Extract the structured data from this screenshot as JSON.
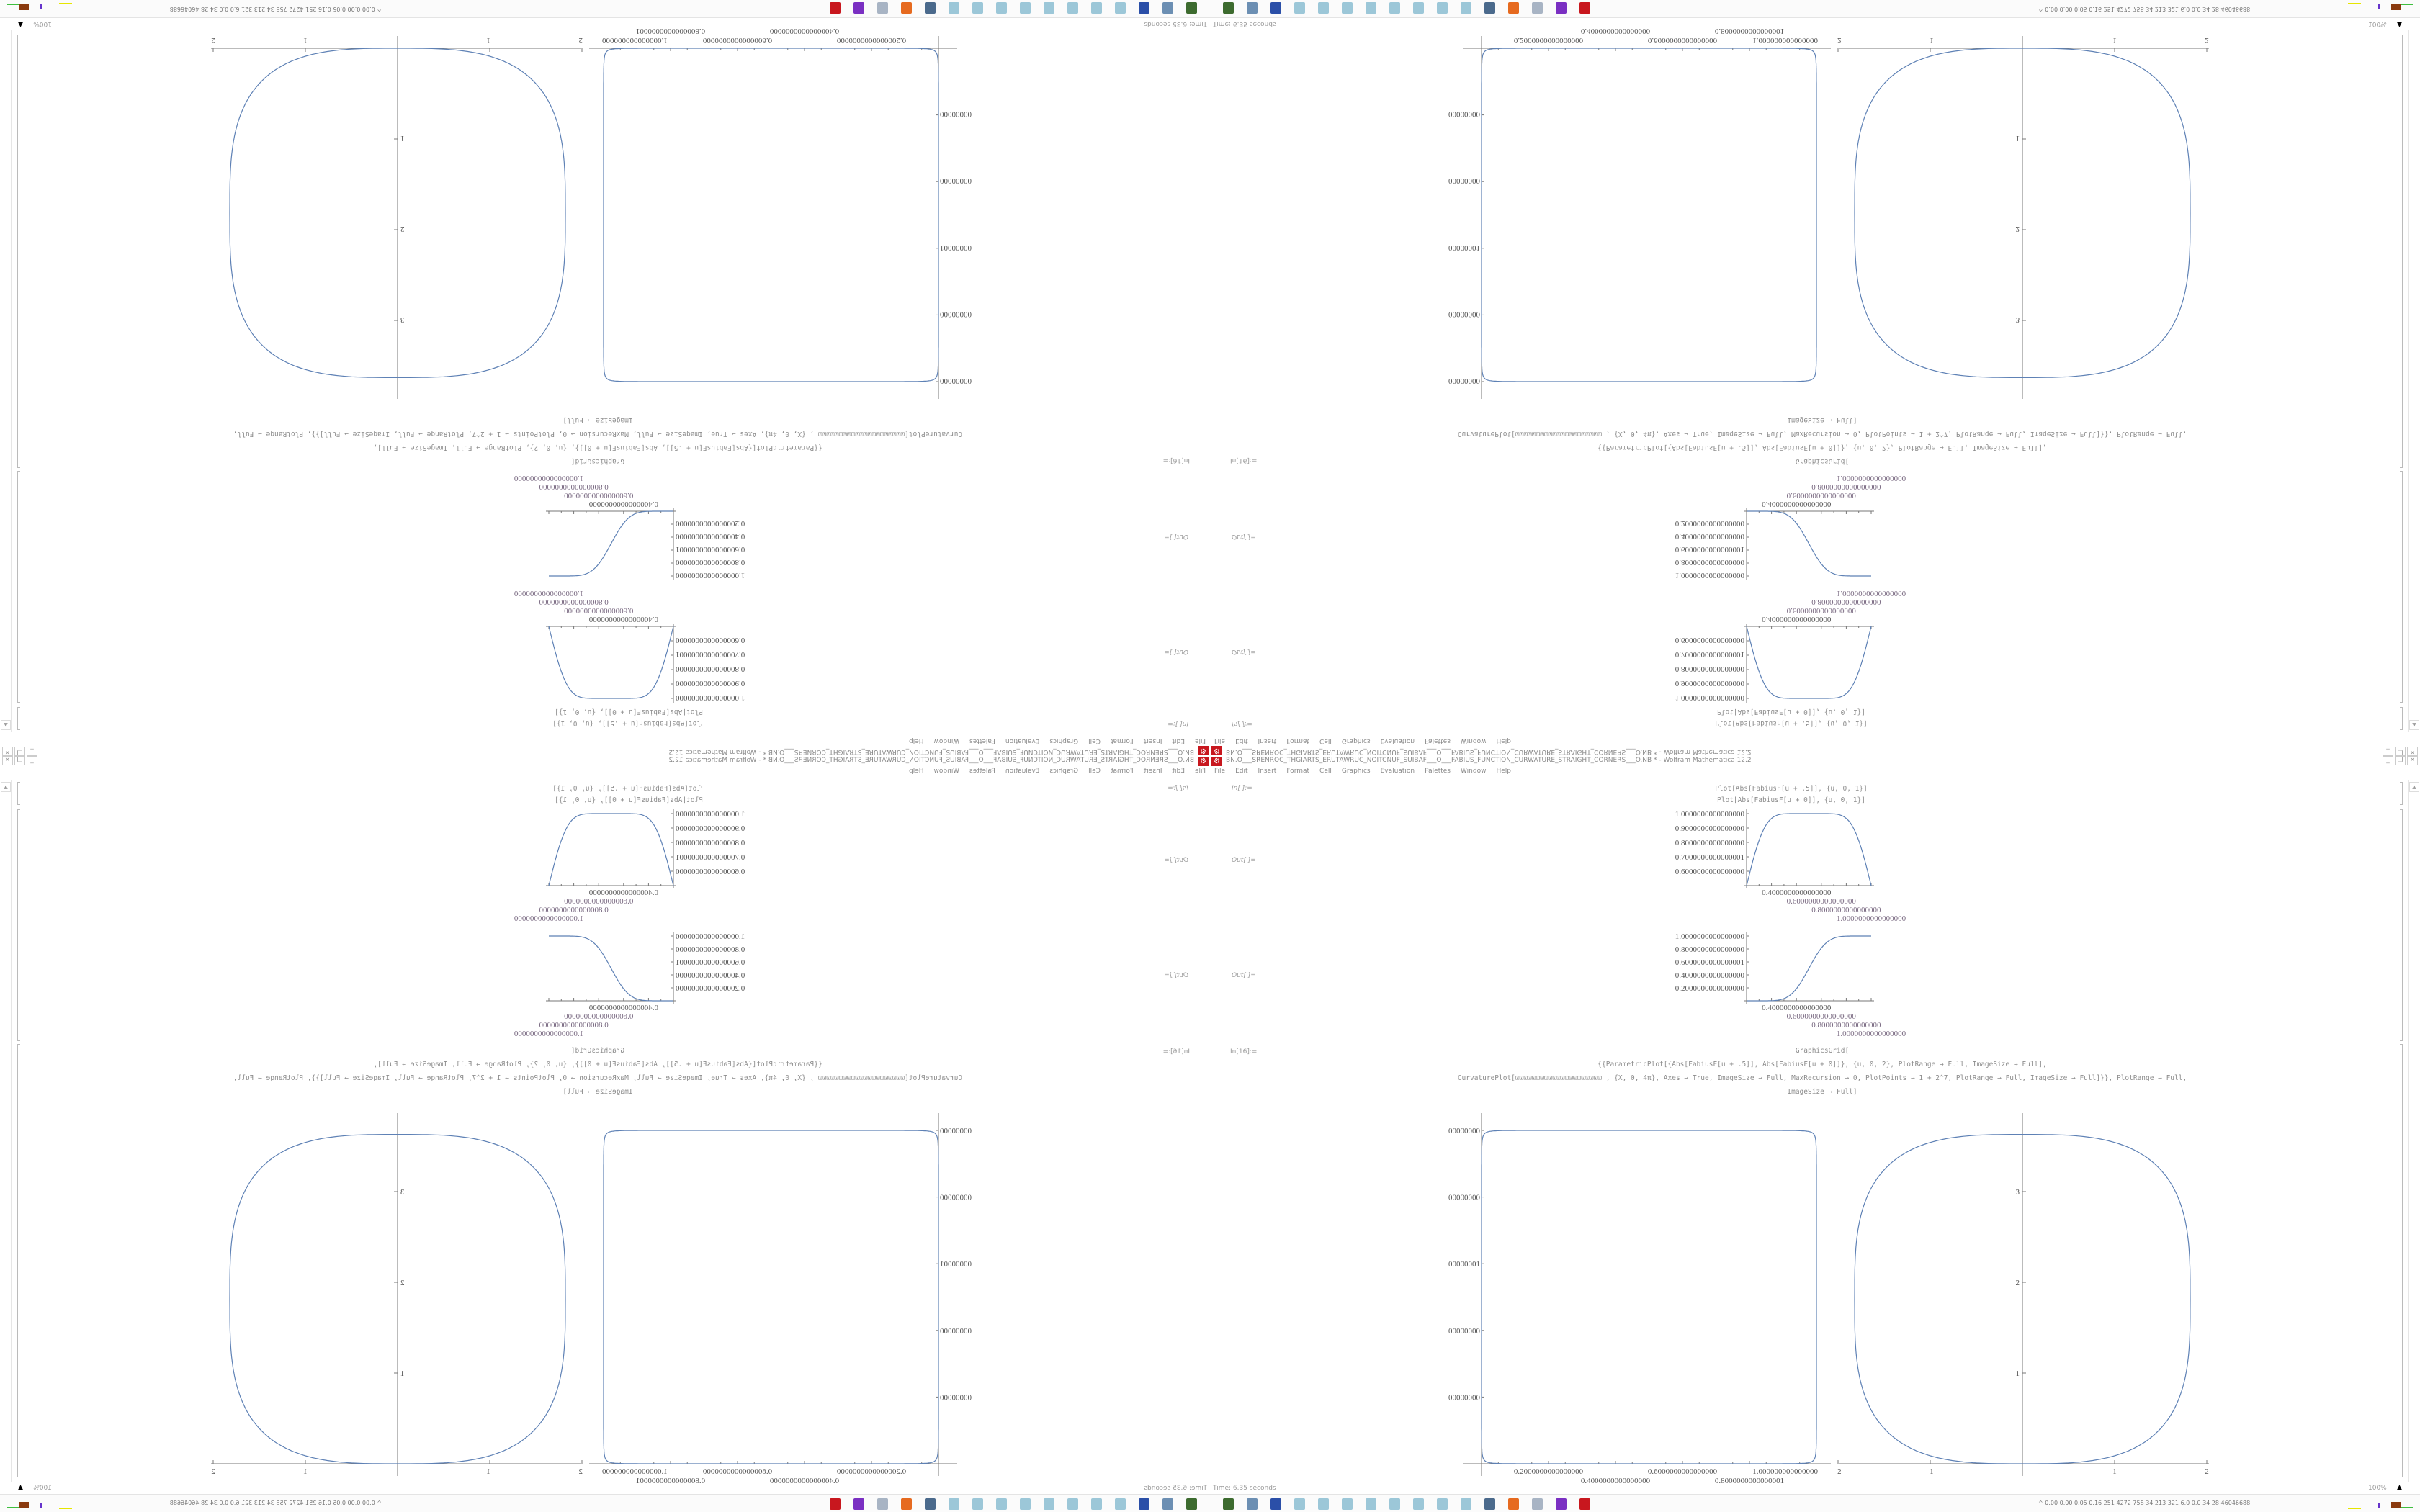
{
  "window": {
    "title": "BN.O___SRENROC_THGIARTS_ERUTAWRUC_NOITCNUF_SUIBAF___O___FABIUS_FUNCTION_CURWATURE_STRAIGHT_CORNERS___O.NB * - Wolfram Mathematica 12.2",
    "app_icon": "mathematica-gear-icon",
    "controls": {
      "minimize": "_",
      "restore": "❐",
      "close": "✕"
    }
  },
  "menu": [
    "File",
    "Edit",
    "Insert",
    "Format",
    "Cell",
    "Graphics",
    "Evaluation",
    "Palettes",
    "Window",
    "Help"
  ],
  "notebook": {
    "in_label_1": "In[ ]:=",
    "out_label_1": "Out[ ]=",
    "out_label_2": "Out[ ]=",
    "in_label_2": "In[16]:=",
    "code_1": [
      "Plot[Abs[FabiusF[u + .5]], {u, 0, 1}]",
      "Plot[Abs[FabiusF[u + 0]], {u, 0, 1}]"
    ],
    "code_2": [
      "GraphicsGrid[",
      "{{ParametricPlot[{Abs[FabiusF[u + .5]], Abs[FabiusF[u + 0]]}, {u, 0, 2}, PlotRange → Full, ImageSize → Full],",
      "CurvaturePlot[⊡⊡⊡⊡⊡⊡⊡⊡⊡⊡⊡⊡⊡⊡⊡⊡⊡⊡⊡⊡⊡            , {X, 0, 4π}, Axes → True, ImageSize → Full, MaxRecursion → 0, PlotPoints → 1 + 2^7, PlotRange → Full, ImageSize → Full]}}, PlotRange → Full,",
      "ImageSize → Full]"
    ],
    "plots": {
      "plot1": {
        "y_ticks": [
          1.0,
          0.9,
          0.8,
          0.7,
          0.6
        ],
        "y_tick_labels": [
          "1.0000000000000000",
          "0.9000000000000000",
          "0.8000000000000000",
          "0.7000000000000001",
          "0.6000000000000000"
        ],
        "y_range": [
          0.5,
          1.0
        ],
        "x_range": [
          0,
          1
        ],
        "x_tick_labels": [
          "0.4000000000000000",
          "0.6000000000000000",
          "0.8000000000000000",
          "1.0000000000000000"
        ]
      },
      "plot2": {
        "y_ticks": [
          1.0,
          0.8,
          0.6,
          0.4,
          0.2
        ],
        "y_tick_labels": [
          "1.0000000000000000",
          "0.8000000000000000",
          "0.6000000000000001",
          "0.4000000000000000",
          "0.2000000000000000"
        ],
        "y_range": [
          0,
          1
        ],
        "x_range": [
          0,
          1
        ],
        "x_tick_labels": [
          "0.4000000000000000",
          "0.6000000000000000",
          "0.8000000000000000",
          "1.0000000000000000"
        ]
      },
      "parametric": {
        "y_tick_labels": [
          "00000000",
          "00000000",
          "00000001",
          "00000000",
          "00000000"
        ],
        "x_tick_labels": [
          "0.2000000000000000",
          "0.4000000000000000",
          "0.6000000000000000",
          "0.8000000000000001",
          "1.000000000000000"
        ],
        "x_range": [
          0,
          1
        ],
        "y_range": [
          0,
          1
        ]
      },
      "curvature": {
        "x_ticks": [
          -2,
          -1,
          1,
          2
        ],
        "y_ticks": [
          1,
          2,
          3
        ],
        "x_range": [
          -2,
          2
        ],
        "y_range": [
          0,
          3.85
        ]
      }
    },
    "curve_color": "#5e81b5"
  },
  "status": {
    "time": "Time: 6.35 seconds",
    "zoom": "100%"
  },
  "taskbar": {
    "icons": [
      {
        "name": "terminal-icon",
        "color": "#3d6b2f"
      },
      {
        "name": "monitor-icon",
        "color": "#6c8fb3"
      },
      {
        "name": "floppy-64-icon",
        "color": "#2b4fa8"
      },
      {
        "name": "notepad-icon",
        "color": "#9cc7d8"
      },
      {
        "name": "notepad-icon",
        "color": "#9cc7d8"
      },
      {
        "name": "notepad-icon",
        "color": "#9cc7d8"
      },
      {
        "name": "notepad-icon",
        "color": "#9cc7d8"
      },
      {
        "name": "notepad-icon",
        "color": "#9cc7d8"
      },
      {
        "name": "notepad-icon",
        "color": "#9cc7d8"
      },
      {
        "name": "notepad-icon",
        "color": "#9cc7d8"
      },
      {
        "name": "notepad-icon",
        "color": "#9cc7d8"
      },
      {
        "name": "network-monitor-icon",
        "color": "#4b6a8c"
      },
      {
        "name": "firefox-icon",
        "color": "#e66a1f"
      },
      {
        "name": "scroll-notepad-icon",
        "color": "#a8b4c4"
      },
      {
        "name": "purple-app-icon",
        "color": "#7a2fc2"
      },
      {
        "name": "mathematica-icon",
        "color": "#c8171e"
      }
    ],
    "tray_text": "^  0.00 0.00 0.05 0.16  251  4272  758   34   213   321   6.0   0.0   34    28   46046688"
  }
}
